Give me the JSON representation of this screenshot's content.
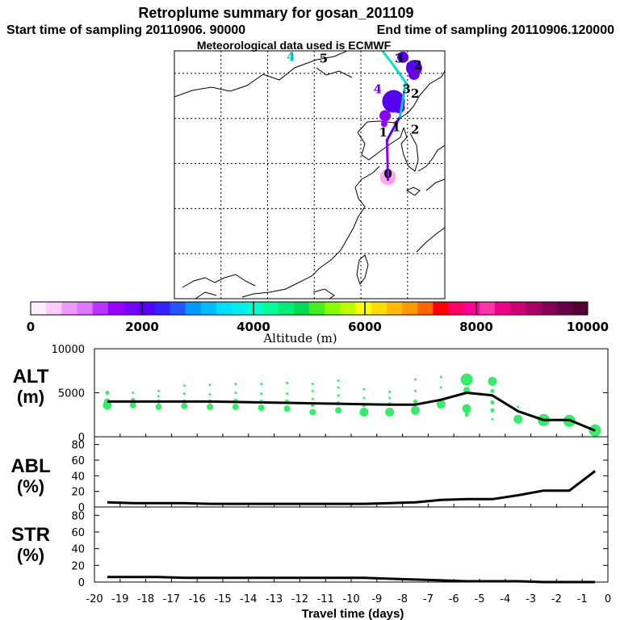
{
  "header": {
    "title": "Retroplume summary for gosan_201109",
    "start_label": "Start time of sampling 20110906. 90000",
    "end_label": "End time of sampling 20110906.120000",
    "met_label": "Meteorological data used is ECMWF"
  },
  "map": {
    "trajectory": [
      {
        "label": "0",
        "lon": 126.9,
        "lat": 33.2,
        "color": "#ff99ee"
      },
      {
        "label": "1",
        "lon": 126.8,
        "lat": 37.6,
        "color": "#8800ff"
      },
      {
        "label": "2",
        "lon": 128.2,
        "lat": 40.2,
        "color": "#5500ff"
      },
      {
        "label": "3",
        "lon": 128.8,
        "lat": 44.0,
        "color": "#00c8dd"
      },
      {
        "label": "4",
        "lon": 127.5,
        "lat": 45.9,
        "color": "#00e0cc"
      },
      {
        "label": "5",
        "lon": 126.3,
        "lat": 47.5,
        "color": "#00e8c0"
      }
    ],
    "day_labels": [
      {
        "text": "0",
        "lon": 126.9,
        "lat": 33.4,
        "color": "#000000"
      },
      {
        "text": "1",
        "lon": 126.4,
        "lat": 38.0,
        "color": "#000000"
      },
      {
        "text": "1",
        "lon": 127.8,
        "lat": 38.6,
        "color": "#000000"
      },
      {
        "text": "2",
        "lon": 129.8,
        "lat": 38.3,
        "color": "#000000"
      },
      {
        "text": "2",
        "lon": 129.8,
        "lat": 42.3,
        "color": "#000000"
      },
      {
        "text": "2",
        "lon": 130.1,
        "lat": 45.5,
        "color": "#000000"
      },
      {
        "text": "3",
        "lon": 128.9,
        "lat": 42.8,
        "color": "#000000"
      },
      {
        "text": "3",
        "lon": 128.1,
        "lat": 46.2,
        "color": "#000000"
      },
      {
        "text": "4",
        "lon": 125.8,
        "lat": 42.8,
        "color": "#6600cc"
      },
      {
        "text": "4",
        "lon": 116.5,
        "lat": 46.4,
        "color": "#00bbaa"
      },
      {
        "text": "5",
        "lon": 120.0,
        "lat": 46.2,
        "color": "#000000"
      }
    ],
    "plume_dots": [
      {
        "lon": 129.7,
        "lat": 45.6,
        "r": "l",
        "color": "#5500ee"
      },
      {
        "lon": 128.5,
        "lat": 46.8,
        "r": "m",
        "color": "#5500ee"
      },
      {
        "lon": 129.7,
        "lat": 44.9,
        "r": "m",
        "color": "#6600dd"
      },
      {
        "lon": 127.5,
        "lat": 41.9,
        "r": "xl",
        "color": "#5500ee"
      },
      {
        "lon": 128.1,
        "lat": 41.2,
        "r": "m",
        "color": "#5500ee"
      },
      {
        "lon": 126.6,
        "lat": 40.3,
        "r": "m",
        "color": "#8800ff"
      },
      {
        "lon": 126.5,
        "lat": 39.4,
        "r": "s",
        "color": "#9900ff"
      },
      {
        "lon": 126.9,
        "lat": 33.5,
        "r": "l",
        "color": "#ffaaee"
      },
      {
        "lon": 127.2,
        "lat": 33.1,
        "r": "s",
        "color": "#ff99ee"
      }
    ]
  },
  "colorbar": {
    "tick_labels": [
      "0",
      "2000",
      "4000",
      "6000",
      "8000",
      "10000"
    ],
    "label": "Altitude (m)",
    "colors": [
      "#ffeeff",
      "#ffccff",
      "#ee99ff",
      "#dd77ff",
      "#bb33ff",
      "#9900ff",
      "#7700ff",
      "#5500ff",
      "#3322ff",
      "#2255ff",
      "#0099ff",
      "#00bbff",
      "#00ddff",
      "#00eeee",
      "#00ffcc",
      "#00ff99",
      "#00ee77",
      "#00dd55",
      "#44ee22",
      "#88ff00",
      "#bbff00",
      "#ffff00",
      "#ffdd00",
      "#ffbb00",
      "#ff9900",
      "#ff6600",
      "#ff0000",
      "#ff0066",
      "#ff0099",
      "#ff33aa",
      "#ee0088",
      "#cc0077",
      "#aa0066",
      "#880055",
      "#660044",
      "#550033"
    ]
  },
  "chart_data": [
    {
      "type": "line",
      "panel_label": "ALT",
      "unit_label": "(m)",
      "ylim": [
        0,
        10000
      ],
      "yticks": [
        "10000",
        "5000",
        "0"
      ],
      "xlim": [
        -20,
        0
      ],
      "x": [
        -19.5,
        -18.5,
        -17.5,
        -16.5,
        -15.5,
        -14.5,
        -13.5,
        -12.5,
        -11.5,
        -10.5,
        -9.5,
        -8.5,
        -7.5,
        -6.5,
        -5.5,
        -4.5,
        -3.5,
        -2.5,
        -1.5,
        -0.5
      ],
      "median_altitude": [
        4000,
        4000,
        4000,
        4000,
        4000,
        3950,
        3900,
        3850,
        3800,
        3750,
        3700,
        3650,
        3650,
        4200,
        5000,
        4700,
        2900,
        1900,
        1900,
        700
      ],
      "scatter": [
        {
          "x": -19.5,
          "y": 3600,
          "s": 4
        },
        {
          "x": -19.5,
          "y": 4000,
          "s": 3
        },
        {
          "x": -19.5,
          "y": 5000,
          "s": 2
        },
        {
          "x": -18.5,
          "y": 3600,
          "s": 3
        },
        {
          "x": -18.5,
          "y": 4200,
          "s": 2
        },
        {
          "x": -18.5,
          "y": 5000,
          "s": 1
        },
        {
          "x": -17.5,
          "y": 3400,
          "s": 3
        },
        {
          "x": -17.5,
          "y": 4000,
          "s": 2
        },
        {
          "x": -17.5,
          "y": 4600,
          "s": 1
        },
        {
          "x": -17.5,
          "y": 5200,
          "s": 1
        },
        {
          "x": -16.5,
          "y": 3500,
          "s": 3
        },
        {
          "x": -16.5,
          "y": 4000,
          "s": 2
        },
        {
          "x": -16.5,
          "y": 4900,
          "s": 1
        },
        {
          "x": -16.5,
          "y": 5800,
          "s": 1
        },
        {
          "x": -15.5,
          "y": 3400,
          "s": 3
        },
        {
          "x": -15.5,
          "y": 4000,
          "s": 2
        },
        {
          "x": -15.5,
          "y": 4800,
          "s": 1
        },
        {
          "x": -15.5,
          "y": 5900,
          "s": 1
        },
        {
          "x": -14.5,
          "y": 3400,
          "s": 3
        },
        {
          "x": -14.5,
          "y": 4100,
          "s": 2
        },
        {
          "x": -14.5,
          "y": 5000,
          "s": 1
        },
        {
          "x": -14.5,
          "y": 6000,
          "s": 1
        },
        {
          "x": -13.5,
          "y": 3300,
          "s": 3
        },
        {
          "x": -13.5,
          "y": 4000,
          "s": 2
        },
        {
          "x": -13.5,
          "y": 4900,
          "s": 1
        },
        {
          "x": -13.5,
          "y": 6000,
          "s": 1
        },
        {
          "x": -12.5,
          "y": 3200,
          "s": 3
        },
        {
          "x": -12.5,
          "y": 4000,
          "s": 2
        },
        {
          "x": -12.5,
          "y": 4900,
          "s": 1
        },
        {
          "x": -12.5,
          "y": 6100,
          "s": 1
        },
        {
          "x": -11.5,
          "y": 2800,
          "s": 3
        },
        {
          "x": -11.5,
          "y": 3600,
          "s": 2
        },
        {
          "x": -11.5,
          "y": 4300,
          "s": 1
        },
        {
          "x": -11.5,
          "y": 5200,
          "s": 1
        },
        {
          "x": -11.5,
          "y": 6000,
          "s": 1
        },
        {
          "x": -10.5,
          "y": 3000,
          "s": 3
        },
        {
          "x": -10.5,
          "y": 3800,
          "s": 2
        },
        {
          "x": -10.5,
          "y": 4700,
          "s": 1
        },
        {
          "x": -10.5,
          "y": 5600,
          "s": 1
        },
        {
          "x": -10.5,
          "y": 6400,
          "s": 1
        },
        {
          "x": -9.5,
          "y": 2800,
          "s": 4
        },
        {
          "x": -9.5,
          "y": 3600,
          "s": 2
        },
        {
          "x": -9.5,
          "y": 4400,
          "s": 1
        },
        {
          "x": -9.5,
          "y": 5400,
          "s": 1
        },
        {
          "x": -8.5,
          "y": 2800,
          "s": 4
        },
        {
          "x": -8.5,
          "y": 3700,
          "s": 2
        },
        {
          "x": -8.5,
          "y": 4400,
          "s": 1
        },
        {
          "x": -8.5,
          "y": 5100,
          "s": 1
        },
        {
          "x": -7.5,
          "y": 3000,
          "s": 4
        },
        {
          "x": -7.5,
          "y": 4000,
          "s": 2
        },
        {
          "x": -7.5,
          "y": 5200,
          "s": 1
        },
        {
          "x": -7.5,
          "y": 6500,
          "s": 1
        },
        {
          "x": -6.5,
          "y": 3700,
          "s": 4
        },
        {
          "x": -6.5,
          "y": 5600,
          "s": 1
        },
        {
          "x": -6.5,
          "y": 6800,
          "s": 1
        },
        {
          "x": -5.5,
          "y": 6500,
          "s": 5
        },
        {
          "x": -5.5,
          "y": 5300,
          "s": 3
        },
        {
          "x": -5.5,
          "y": 3200,
          "s": 4
        },
        {
          "x": -5.5,
          "y": 2500,
          "s": 2
        },
        {
          "x": -4.5,
          "y": 6300,
          "s": 4
        },
        {
          "x": -4.5,
          "y": 5200,
          "s": 2
        },
        {
          "x": -4.5,
          "y": 3900,
          "s": 2
        },
        {
          "x": -4.5,
          "y": 3000,
          "s": 2
        },
        {
          "x": -4.5,
          "y": 2000,
          "s": 1
        },
        {
          "x": -3.5,
          "y": 2000,
          "s": 4
        },
        {
          "x": -3.5,
          "y": 3400,
          "s": 1
        },
        {
          "x": -2.5,
          "y": 1900,
          "s": 5
        },
        {
          "x": -2.5,
          "y": 2400,
          "s": 1
        },
        {
          "x": -1.5,
          "y": 1800,
          "s": 5
        },
        {
          "x": -1.5,
          "y": 2300,
          "s": 1
        },
        {
          "x": -0.5,
          "y": 700,
          "s": 5
        },
        {
          "x": -0.5,
          "y": 1300,
          "s": 1
        }
      ]
    },
    {
      "type": "line",
      "panel_label": "ABL",
      "unit_label": "(%)",
      "ylim": [
        0,
        90
      ],
      "yticks": [
        "80",
        "60",
        "40",
        "20",
        "0"
      ],
      "xlim": [
        -20,
        0
      ],
      "x": [
        -19.5,
        -18.5,
        -17.5,
        -16.5,
        -15.5,
        -14.5,
        -13.5,
        -12.5,
        -11.5,
        -10.5,
        -9.5,
        -8.5,
        -7.5,
        -6.5,
        -5.5,
        -4.5,
        -3.5,
        -2.5,
        -1.5,
        -0.5
      ],
      "values": [
        6,
        5,
        5,
        5,
        4,
        4,
        4,
        4,
        4,
        4,
        4,
        5,
        6,
        9,
        10,
        10,
        15,
        21,
        21,
        46
      ]
    },
    {
      "type": "line",
      "panel_label": "STR",
      "unit_label": "(%)",
      "ylim": [
        0,
        90
      ],
      "yticks": [
        "80",
        "60",
        "40",
        "20",
        "0"
      ],
      "xlim": [
        -20,
        0
      ],
      "x": [
        -19.5,
        -18.5,
        -17.5,
        -16.5,
        -15.5,
        -14.5,
        -13.5,
        -12.5,
        -11.5,
        -10.5,
        -9.5,
        -8.5,
        -7.5,
        -6.5,
        -5.5,
        -4.5,
        -3.5,
        -2.5,
        -1.5,
        -0.5
      ],
      "values": [
        6,
        6,
        6,
        5,
        5,
        5,
        5,
        5,
        5,
        5,
        5,
        4,
        3,
        2,
        1,
        1,
        1,
        0,
        0,
        0
      ]
    }
  ],
  "x_axis": {
    "tick_labels": [
      "-20",
      "-19",
      "-18",
      "-17",
      "-16",
      "-15",
      "-14",
      "-13",
      "-12",
      "-11",
      "-10",
      "-9",
      "-8",
      "-7",
      "-6",
      "-5",
      "-4",
      "-3",
      "-2",
      "-1",
      "0"
    ],
    "label": "Travel time (days)"
  },
  "colors": {
    "alt_scatter": "#33ee66",
    "line": "#000000"
  }
}
